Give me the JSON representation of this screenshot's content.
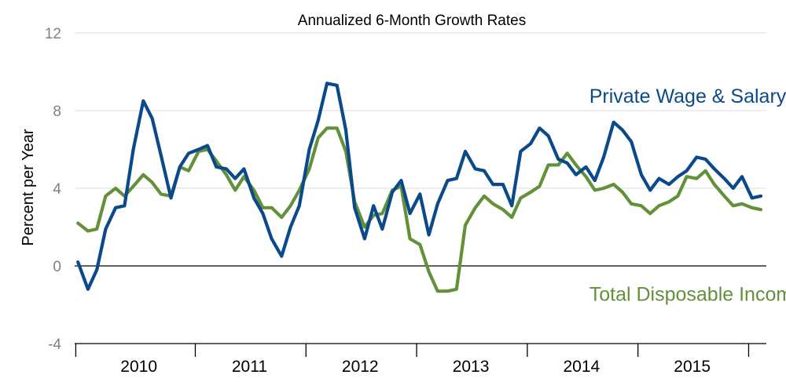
{
  "chart_data": {
    "type": "line",
    "title": "Annualized 6-Month Growth Rates",
    "xlabel": "",
    "ylabel": "Percent per Year",
    "ylim": [
      -4,
      12
    ],
    "yticks": [
      "12",
      "8",
      "4",
      "0",
      "-4"
    ],
    "ytick_values": [
      12,
      8,
      4,
      0,
      -4
    ],
    "xlim": [
      2009.7,
      2015.95
    ],
    "xtick_labels": [
      "2010",
      "2011",
      "2012",
      "2013",
      "2014",
      "2015"
    ],
    "xtick_values": [
      2010.28,
      2011.28,
      2012.28,
      2013.28,
      2014.28,
      2015.28
    ],
    "year_boundaries": [
      2009.71,
      2010.79,
      2011.79,
      2012.79,
      2013.79,
      2014.79,
      2015.79
    ],
    "grid": true,
    "colors": {
      "wage": "#0a4a8a",
      "disposable": "#63913a",
      "grid": "#dcdcdc",
      "zero": "#000000"
    },
    "series": [
      {
        "name": "Private Wage & Salary Income",
        "color": "#0a4a8a",
        "x": [
          2009.73,
          2009.82,
          2009.9,
          2009.98,
          2010.07,
          2010.15,
          2010.23,
          2010.32,
          2010.4,
          2010.48,
          2010.57,
          2010.65,
          2010.73,
          2010.82,
          2010.9,
          2010.98,
          2011.07,
          2011.15,
          2011.23,
          2011.32,
          2011.4,
          2011.48,
          2011.57,
          2011.65,
          2011.73,
          2011.82,
          2011.9,
          2011.98,
          2012.07,
          2012.15,
          2012.23,
          2012.32,
          2012.4,
          2012.48,
          2012.57,
          2012.65,
          2012.73,
          2012.82,
          2012.9,
          2012.98,
          2013.07,
          2013.15,
          2013.23,
          2013.32,
          2013.4,
          2013.48,
          2013.57,
          2013.65,
          2013.73,
          2013.82,
          2013.9,
          2013.98,
          2014.07,
          2014.15,
          2014.23,
          2014.32,
          2014.4,
          2014.48,
          2014.57,
          2014.65,
          2014.73,
          2014.82,
          2014.9,
          2014.98,
          2015.07,
          2015.15,
          2015.23,
          2015.32,
          2015.4,
          2015.48,
          2015.57,
          2015.65,
          2015.73,
          2015.82,
          2015.9
        ],
        "values": [
          0.2,
          -1.2,
          -0.2,
          1.9,
          3.0,
          3.1,
          6.0,
          8.5,
          7.6,
          5.7,
          3.5,
          5.1,
          5.8,
          6.0,
          6.2,
          5.1,
          5.0,
          4.5,
          5.0,
          3.5,
          2.7,
          1.4,
          0.5,
          2.0,
          3.1,
          6.0,
          7.5,
          9.4,
          9.3,
          7.0,
          3.0,
          1.4,
          3.1,
          1.9,
          3.8,
          4.4,
          2.7,
          3.7,
          1.6,
          3.2,
          4.4,
          4.5,
          5.9,
          5.0,
          4.9,
          4.2,
          4.2,
          3.1,
          5.9,
          6.3,
          7.1,
          6.7,
          5.5,
          5.3,
          4.7,
          5.1,
          4.4,
          5.6,
          7.4,
          7.0,
          6.4,
          4.7,
          3.9,
          4.5,
          4.2,
          4.6,
          4.9,
          5.6,
          5.5,
          5.0,
          4.5,
          4.0,
          4.6,
          3.5,
          3.6
        ]
      },
      {
        "name": "Total Disposable Income",
        "color": "#63913a",
        "x": [
          2009.73,
          2009.82,
          2009.9,
          2009.98,
          2010.07,
          2010.15,
          2010.23,
          2010.32,
          2010.4,
          2010.48,
          2010.57,
          2010.65,
          2010.73,
          2010.82,
          2010.9,
          2010.98,
          2011.07,
          2011.15,
          2011.23,
          2011.32,
          2011.4,
          2011.48,
          2011.57,
          2011.65,
          2011.73,
          2011.82,
          2011.9,
          2011.98,
          2012.07,
          2012.15,
          2012.23,
          2012.32,
          2012.4,
          2012.48,
          2012.57,
          2012.65,
          2012.73,
          2012.82,
          2012.9,
          2012.98,
          2013.07,
          2013.15,
          2013.23,
          2013.32,
          2013.4,
          2013.48,
          2013.57,
          2013.65,
          2013.73,
          2013.82,
          2013.9,
          2013.98,
          2014.07,
          2014.15,
          2014.23,
          2014.32,
          2014.4,
          2014.48,
          2014.57,
          2014.65,
          2014.73,
          2014.82,
          2014.9,
          2014.98,
          2015.07,
          2015.15,
          2015.23,
          2015.32,
          2015.4,
          2015.48,
          2015.57,
          2015.65,
          2015.73,
          2015.82,
          2015.9
        ],
        "values": [
          2.2,
          1.8,
          1.9,
          3.6,
          4.0,
          3.6,
          4.1,
          4.7,
          4.3,
          3.7,
          3.6,
          5.1,
          4.9,
          5.9,
          6.0,
          5.4,
          4.7,
          3.9,
          4.6,
          3.9,
          3.0,
          3.0,
          2.5,
          3.1,
          3.9,
          5.0,
          6.6,
          7.1,
          7.1,
          5.9,
          3.3,
          2.0,
          2.6,
          2.7,
          3.9,
          4.1,
          1.4,
          1.1,
          -0.3,
          -1.3,
          -1.3,
          -1.2,
          2.1,
          3.0,
          3.6,
          3.2,
          2.9,
          2.5,
          3.5,
          3.8,
          4.1,
          5.2,
          5.2,
          5.8,
          5.2,
          4.6,
          3.9,
          4.0,
          4.2,
          3.8,
          3.2,
          3.1,
          2.7,
          3.1,
          3.3,
          3.6,
          4.6,
          4.5,
          4.9,
          4.2,
          3.6,
          3.1,
          3.2,
          3.0,
          2.9
        ]
      }
    ],
    "annotations": [
      {
        "text": "Private Wage & Salary Income",
        "x": 2014.35,
        "y": 8.4,
        "color": "#0a4a8a"
      },
      {
        "text": "Total Disposable Income",
        "x": 2014.35,
        "y": -1.8,
        "color": "#63913a"
      }
    ]
  }
}
